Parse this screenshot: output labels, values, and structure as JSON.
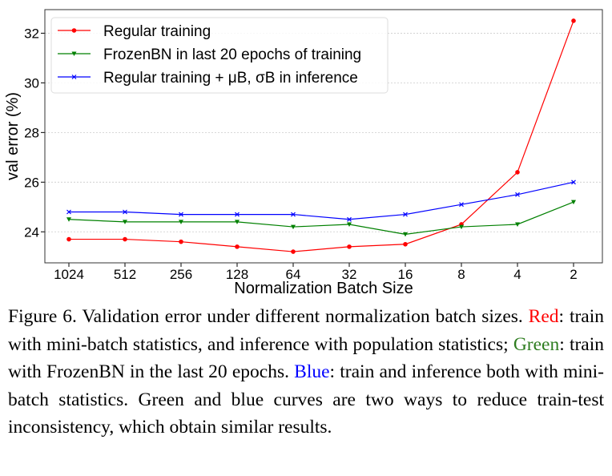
{
  "chart_data": {
    "type": "line",
    "xlabel": "Normalization Batch Size",
    "ylabel": "val error (%)",
    "categories": [
      "1024",
      "512",
      "256",
      "128",
      "64",
      "32",
      "16",
      "8",
      "4",
      "2"
    ],
    "yticks": [
      24,
      26,
      28,
      30,
      32
    ],
    "ylim": [
      22.75,
      32.95
    ],
    "grid": true,
    "legend_placement": "top-left",
    "series": [
      {
        "name": "Regular training",
        "color": "#ff0000",
        "marker": "circle",
        "values": [
          23.7,
          23.7,
          23.6,
          23.4,
          23.2,
          23.4,
          23.5,
          24.3,
          26.4,
          32.5
        ]
      },
      {
        "name": "FrozenBN in last 20 epochs of training",
        "color": "#008000",
        "marker": "triangle-down",
        "values": [
          24.5,
          24.4,
          24.4,
          24.4,
          24.2,
          24.3,
          23.9,
          24.2,
          24.3,
          25.2
        ]
      },
      {
        "name": "Regular training + μB, σB in inference",
        "color": "#0000ff",
        "marker": "x",
        "values": [
          24.8,
          24.8,
          24.7,
          24.7,
          24.7,
          24.5,
          24.7,
          25.1,
          25.5,
          26.0
        ]
      }
    ]
  },
  "caption": {
    "prefix": "Figure 6. Validation error under different normalization batch sizes. ",
    "red_word": "Red",
    "red_text": ": train with mini-batch statistics, and inference with population statistics; ",
    "green_word": "Green",
    "green_text": ": train with FrozenBN in the last 20 epochs. ",
    "blue_word": "Blue",
    "blue_text": ": train and inference both with mini-batch statistics. Green and blue curves are two ways to reduce train-test inconsis­tency, which obtain similar results."
  }
}
